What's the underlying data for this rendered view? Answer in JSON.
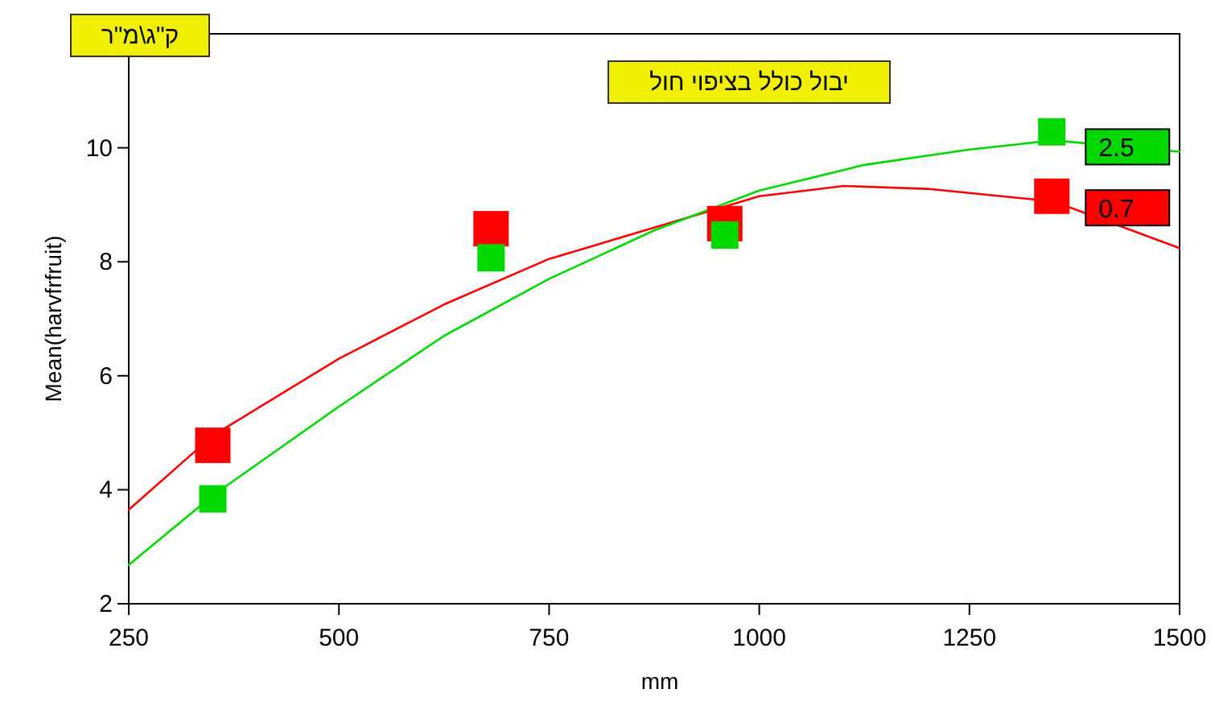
{
  "chart_data": {
    "type": "line",
    "title": "יבול כולל בציפוי חול",
    "annotations": [
      "ק\"ג\\מ\"ר"
    ],
    "xlabel": "mm",
    "ylabel": "Mean(harvfrfruit)",
    "xlim": [
      250,
      1500
    ],
    "xticks": [
      250,
      500,
      750,
      1000,
      1250,
      1500
    ],
    "ylim": [
      2,
      12
    ],
    "yticks": [
      2,
      4,
      6,
      8,
      10
    ],
    "series": [
      {
        "type": "scatter",
        "marker": "square",
        "color": "#ff0000",
        "x": [
          350,
          681,
          959,
          1348
        ],
        "values": [
          4.78,
          8.58,
          8.67,
          9.15
        ]
      },
      {
        "type": "scatter",
        "marker": "square",
        "color": "#00d800",
        "x": [
          350,
          681,
          959,
          1348
        ],
        "values": [
          3.84,
          8.07,
          8.47,
          10.28
        ]
      },
      {
        "type": "line",
        "name": "0.7",
        "color": "#ff0000",
        "x": [
          250,
          350,
          500,
          625,
          750,
          875,
          1000,
          1100,
          1200,
          1350,
          1500
        ],
        "values": [
          3.65,
          4.95,
          6.3,
          7.25,
          8.05,
          8.6,
          9.15,
          9.33,
          9.28,
          9.06,
          8.24
        ]
      },
      {
        "type": "line",
        "name": "2.5",
        "color": "#00d800",
        "x": [
          250,
          350,
          500,
          625,
          750,
          875,
          1000,
          1125,
          1250,
          1350,
          1500
        ],
        "values": [
          2.68,
          3.9,
          5.46,
          6.7,
          7.7,
          8.55,
          9.25,
          9.7,
          9.97,
          10.13,
          9.93
        ]
      }
    ]
  }
}
